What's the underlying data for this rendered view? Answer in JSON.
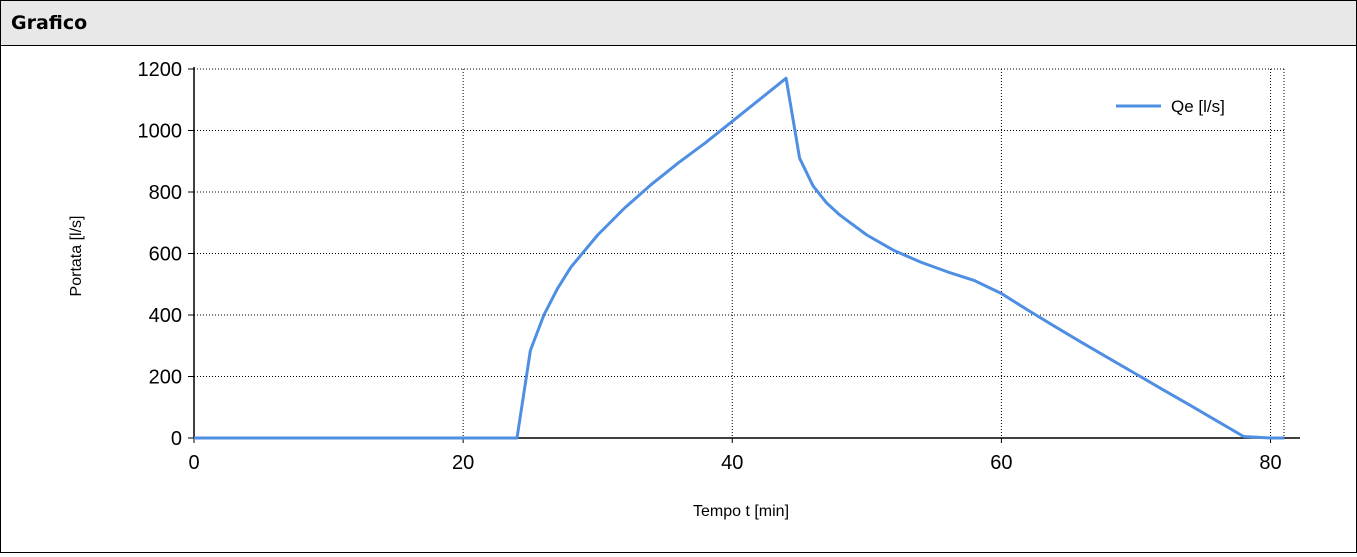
{
  "panel": {
    "title": "Grafico"
  },
  "chart_data": {
    "type": "line",
    "xlabel": "Tempo t [min]",
    "ylabel": "Portata [l/s]",
    "xlim": [
      0,
      81
    ],
    "ylim": [
      0,
      1200
    ],
    "xticks": [
      0,
      20,
      40,
      60,
      80
    ],
    "yticks": [
      0,
      200,
      400,
      600,
      800,
      1000,
      1200
    ],
    "grid": true,
    "legend_position": "top-right",
    "series": [
      {
        "name": "Qe [l/s]",
        "color": "#4f8fe3",
        "x": [
          0,
          24,
          25,
          26,
          27,
          28,
          30,
          32,
          34,
          36,
          38,
          40,
          42,
          44,
          45,
          46,
          47,
          48,
          50,
          52,
          54,
          56,
          58,
          60,
          62,
          64,
          66,
          68,
          70,
          72,
          74,
          76,
          78,
          80,
          81
        ],
        "y": [
          0,
          0,
          285,
          400,
          485,
          555,
          660,
          748,
          825,
          895,
          960,
          1030,
          1100,
          1170,
          910,
          820,
          765,
          725,
          660,
          610,
          572,
          540,
          512,
          470,
          415,
          362,
          310,
          259,
          208,
          157,
          107,
          56,
          5,
          0,
          0
        ]
      }
    ]
  }
}
